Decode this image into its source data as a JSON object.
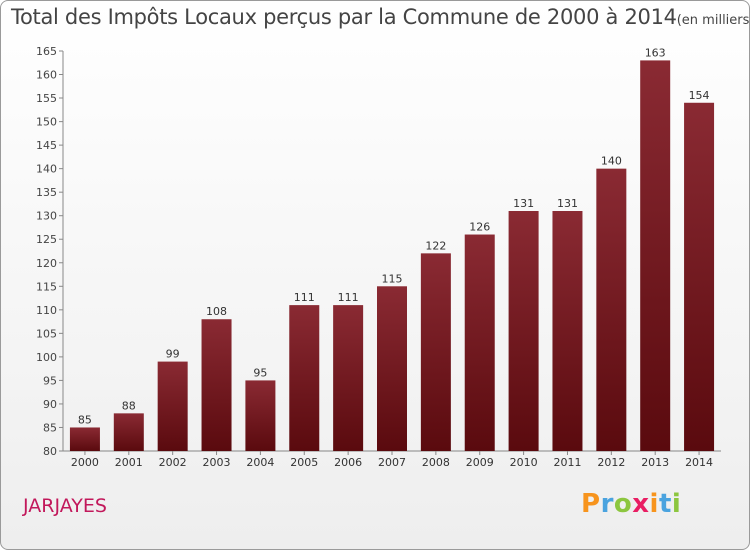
{
  "header": {
    "title": "Total des Impôts Locaux perçus par la Commune de 2000 à 2014",
    "unit": "(en milliers d'€)"
  },
  "commune": "JARJAYES",
  "logo": {
    "letters": [
      "P",
      "r",
      "o",
      "x",
      "i",
      "t",
      "i"
    ],
    "colors": [
      "#f7941d",
      "#4aa3df",
      "#8cc63f",
      "#e91e63",
      "#f7941d",
      "#4aa3df",
      "#8cc63f"
    ]
  },
  "chart_data": {
    "type": "bar",
    "title": "Total des Impôts Locaux perçus par la Commune de 2000 à 2014",
    "xlabel": "",
    "ylabel": "",
    "categories": [
      "2000",
      "2001",
      "2002",
      "2003",
      "2004",
      "2005",
      "2006",
      "2007",
      "2008",
      "2009",
      "2010",
      "2011",
      "2012",
      "2013",
      "2014"
    ],
    "values": [
      85,
      88,
      99,
      108,
      95,
      111,
      111,
      115,
      122,
      126,
      131,
      131,
      140,
      163,
      154
    ],
    "ylim": [
      80,
      165
    ],
    "yticks": [
      80,
      85,
      90,
      95,
      100,
      105,
      110,
      115,
      120,
      125,
      130,
      135,
      140,
      145,
      150,
      155,
      160,
      165
    ],
    "grid": false,
    "bar_color": "#7b1a22"
  }
}
